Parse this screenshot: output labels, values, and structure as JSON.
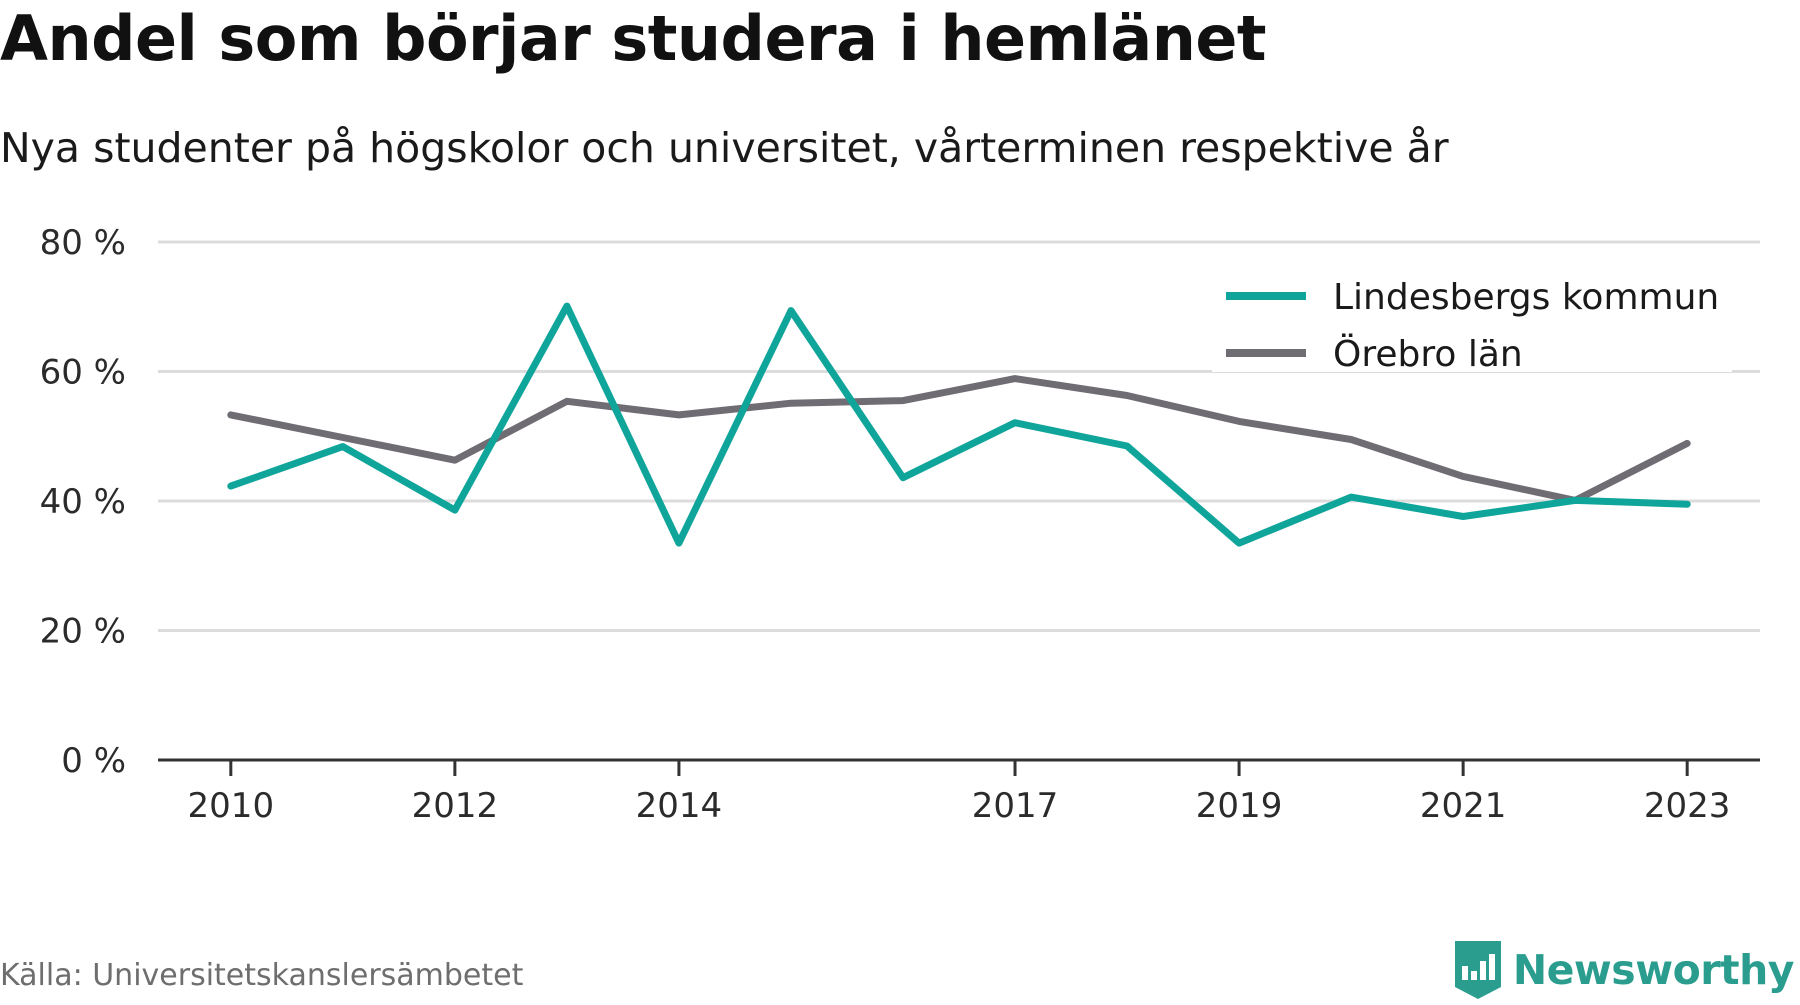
{
  "header": {
    "title": "Andel som börjar studera i hemlänet",
    "subtitle": "Nya studenter på högskolor och universitet, vårterminen respektive år"
  },
  "footer": {
    "source": "Källa: Universitetskanslersämbetet",
    "brand": "Newsworthy",
    "brand_icon": "bar-chart-badge-icon"
  },
  "colors": {
    "lindesberg": "#10a59a",
    "orebro": "#6f6d73",
    "grid": "#dcdcdc",
    "axis": "#333333",
    "brand": "#2a9d8f"
  },
  "chart_data": {
    "type": "line",
    "title": "Andel som börjar studera i hemlänet",
    "subtitle": "Nya studenter på högskolor och universitet, vårterminen respektive år",
    "x": [
      2010,
      2011,
      2012,
      2013,
      2014,
      2015,
      2016,
      2017,
      2018,
      2019,
      2020,
      2021,
      2022,
      2023
    ],
    "xticks": [
      2010,
      2012,
      2014,
      2017,
      2019,
      2021,
      2023
    ],
    "xlim": [
      2009.35,
      2023.65
    ],
    "ylim": [
      0,
      80
    ],
    "yticks": [
      0,
      20,
      40,
      60,
      80
    ],
    "ytick_labels": [
      "0 %",
      "20 %",
      "40 %",
      "60 %",
      "80 %"
    ],
    "grid": true,
    "legend_position": "top-right",
    "series": [
      {
        "name": "Lindesbergs kommun",
        "color": "#10a59a",
        "values": [
          42.3,
          48.4,
          38.6,
          70.1,
          33.5,
          69.4,
          43.6,
          52.1,
          48.5,
          33.5,
          40.6,
          37.6,
          40.1,
          39.5
        ]
      },
      {
        "name": "Örebro län",
        "color": "#6f6d73",
        "values": [
          53.3,
          49.8,
          46.3,
          55.4,
          53.3,
          55.1,
          55.5,
          58.9,
          56.3,
          52.3,
          49.5,
          43.8,
          40.1,
          48.9
        ]
      }
    ]
  }
}
